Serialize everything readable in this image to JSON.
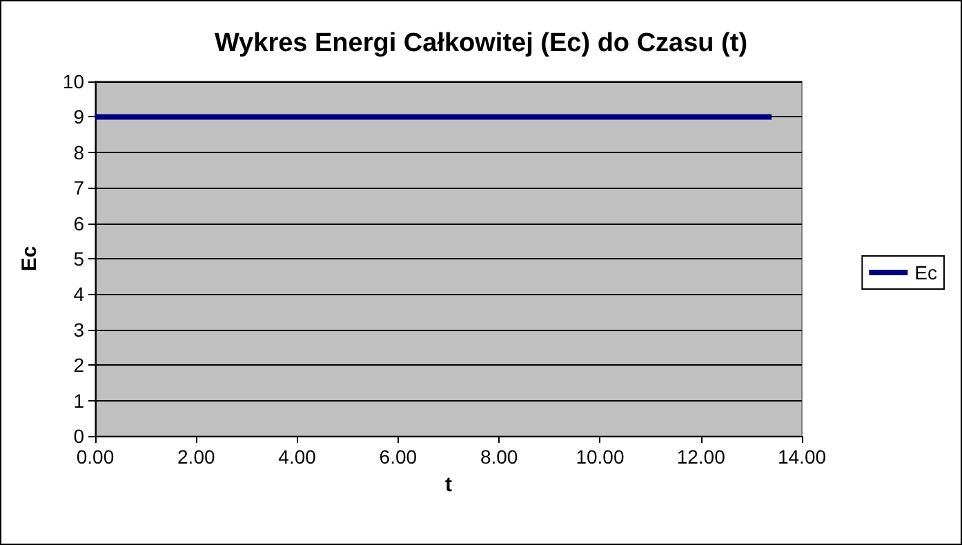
{
  "chart_data": {
    "type": "line",
    "title": "Wykres Energi Całkowitej (Ec) do Czasu (t)",
    "xlabel": "t",
    "ylabel": "Ec",
    "x": [
      0,
      13.4
    ],
    "series": [
      {
        "name": "Ec",
        "color": "#000080",
        "values": [
          9,
          9
        ]
      }
    ],
    "xlim": [
      0,
      14
    ],
    "xticks": [
      {
        "value": 0,
        "label": "0.00"
      },
      {
        "value": 2,
        "label": "2.00"
      },
      {
        "value": 4,
        "label": "4.00"
      },
      {
        "value": 6,
        "label": "6.00"
      },
      {
        "value": 8,
        "label": "8.00"
      },
      {
        "value": 10,
        "label": "10.00"
      },
      {
        "value": 12,
        "label": "12.00"
      },
      {
        "value": 14,
        "label": "14.00"
      }
    ],
    "ylim": [
      0,
      10
    ],
    "yticks": [
      0,
      1,
      2,
      3,
      4,
      5,
      6,
      7,
      8,
      9,
      10
    ],
    "grid": "y",
    "legend": "right",
    "marker": "none",
    "line_style": "solid"
  }
}
